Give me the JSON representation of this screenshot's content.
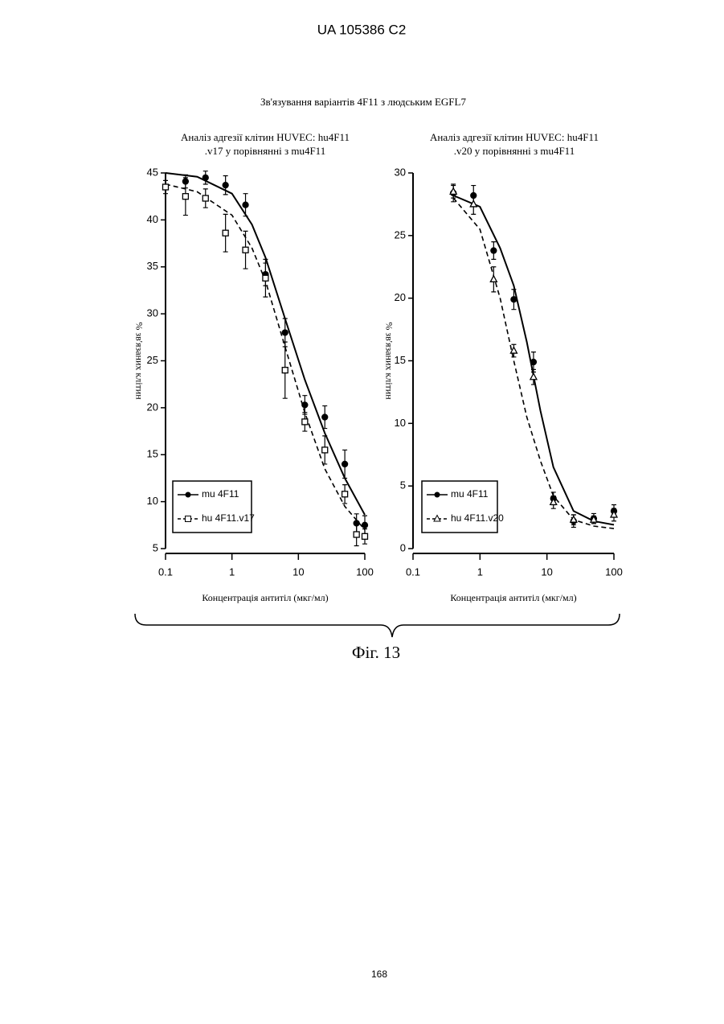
{
  "header": "UA   105386   C2",
  "figure_title": "Зв'язування варіантів 4F11 з людським EGFL7",
  "caption": "Фіг. 13",
  "page_number": "168",
  "chart_data": [
    {
      "type": "scatter",
      "title": [
        "Аналіз адгезії клітин HUVEC: hu4F11",
        ".v17 у порівнянні з mu4F11"
      ],
      "x_label": "Концентрація антитіл (мкг/мл)",
      "y_label": "% зв'язаних клітин",
      "xlim": [
        0.1,
        100
      ],
      "xticks": [
        0.1,
        1,
        10,
        100
      ],
      "x_log": true,
      "ylim": [
        5,
        45
      ],
      "yticks": [
        5,
        10,
        15,
        20,
        25,
        30,
        35,
        40,
        45
      ],
      "series": [
        {
          "name": "mu 4F11",
          "color": "#000000",
          "marker": "circle",
          "dashed": false,
          "x": [
            0.2,
            0.4,
            0.8,
            1.6,
            3.2,
            6.3,
            12.5,
            25,
            50,
            75,
            100
          ],
          "values": [
            44.1,
            44.5,
            43.7,
            41.6,
            34.2,
            28,
            20.3,
            19,
            14,
            7.7,
            7.5
          ],
          "errors": [
            0.7,
            0.7,
            1.0,
            1.2,
            1.2,
            1.5,
            1.0,
            1.2,
            1.5,
            1.0,
            1.0
          ],
          "curve": {
            "x": [
              0.1,
              0.3,
              1,
              2,
              3.2,
              6.3,
              12.5,
              25,
              50,
              100
            ],
            "y": [
              45,
              44.6,
              42.8,
              39.5,
              36,
              29.5,
              23,
              17.3,
              12.5,
              8.6
            ]
          }
        },
        {
          "name": "hu 4F11.v17",
          "color": "#000000",
          "marker": "square",
          "dashed": true,
          "x": [
            0.1,
            0.2,
            0.4,
            0.8,
            1.6,
            3.2,
            6.3,
            12.5,
            25,
            50,
            75,
            100
          ],
          "values": [
            43.5,
            42.5,
            42.3,
            38.6,
            36.8,
            33.8,
            24,
            18.5,
            15.5,
            10.8,
            6.5,
            6.3
          ],
          "errors": [
            0.7,
            2,
            1,
            2,
            2,
            2,
            3,
            1,
            1.5,
            1,
            1.2,
            0.8
          ],
          "curve": {
            "x": [
              0.1,
              0.3,
              1,
              2,
              3.2,
              6.3,
              12.5,
              25,
              50,
              100
            ],
            "y": [
              43.8,
              43,
              40.5,
              37,
              33.5,
              26.5,
              19.5,
              13.5,
              9.5,
              7
            ]
          }
        }
      ]
    },
    {
      "type": "scatter",
      "title": [
        "Аналіз адгезії клітин HUVEC: hu4F11",
        ".v20 у порівнянні з mu4F11"
      ],
      "x_label": "Концентрація антитіл (мкг/мл)",
      "y_label": "% зв'язаних клітин",
      "xlim": [
        0.1,
        100
      ],
      "xticks": [
        0.1,
        1,
        10,
        100
      ],
      "x_log": true,
      "ylim": [
        0,
        30
      ],
      "yticks": [
        0,
        5,
        10,
        15,
        20,
        25,
        30
      ],
      "series": [
        {
          "name": "mu 4F11",
          "color": "#000000",
          "marker": "circle",
          "dashed": false,
          "x": [
            0.4,
            0.8,
            1.6,
            3.2,
            6.3,
            12.5,
            25,
            50,
            100
          ],
          "values": [
            28.4,
            28.2,
            23.8,
            19.9,
            14.9,
            4.0,
            2.2,
            2.4,
            3.0
          ],
          "errors": [
            0.7,
            0.8,
            0.7,
            0.8,
            0.8,
            0.5,
            0.5,
            0.4,
            0.5
          ],
          "curve": {
            "x": [
              0.4,
              1,
              2,
              3.2,
              5,
              8,
              12.5,
              25,
              50,
              100
            ],
            "y": [
              28.2,
              27.3,
              24,
              21,
              16.5,
              11,
              6.5,
              3,
              2.2,
              1.9
            ]
          }
        },
        {
          "name": "hu 4F11.v20",
          "color": "#000000",
          "marker": "triangle",
          "dashed": true,
          "x": [
            0.4,
            0.8,
            1.6,
            3.2,
            6.3,
            12.5,
            25,
            50,
            100
          ],
          "values": [
            28.5,
            27.5,
            21.5,
            15.8,
            13.7,
            3.7,
            2.3,
            2.3,
            2.7
          ],
          "errors": [
            0.5,
            0.8,
            1.0,
            0.5,
            0.6,
            0.5,
            0.4,
            0.3,
            0.5
          ],
          "curve": {
            "x": [
              0.4,
              1,
              2,
              3.2,
              5,
              8,
              12.5,
              25,
              50,
              100
            ],
            "y": [
              28,
              25.5,
              20,
              15,
              10.5,
              7,
              4.2,
              2.3,
              1.8,
              1.6
            ]
          }
        }
      ]
    }
  ]
}
